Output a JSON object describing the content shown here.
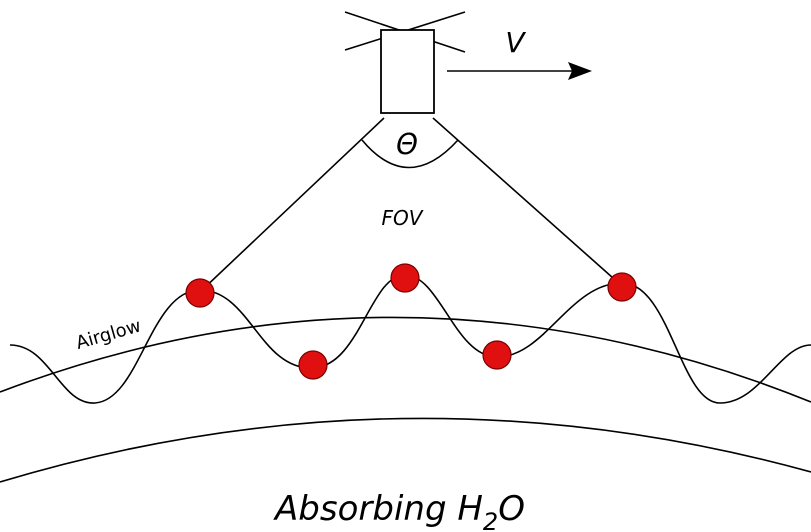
{
  "labels": {
    "velocity": "V",
    "angle": "Θ",
    "fov": "FOV",
    "airglow": "Airglow",
    "absorbing": {
      "text": "Absorbing H",
      "subscript": "2",
      "suffix": "O"
    }
  }
}
